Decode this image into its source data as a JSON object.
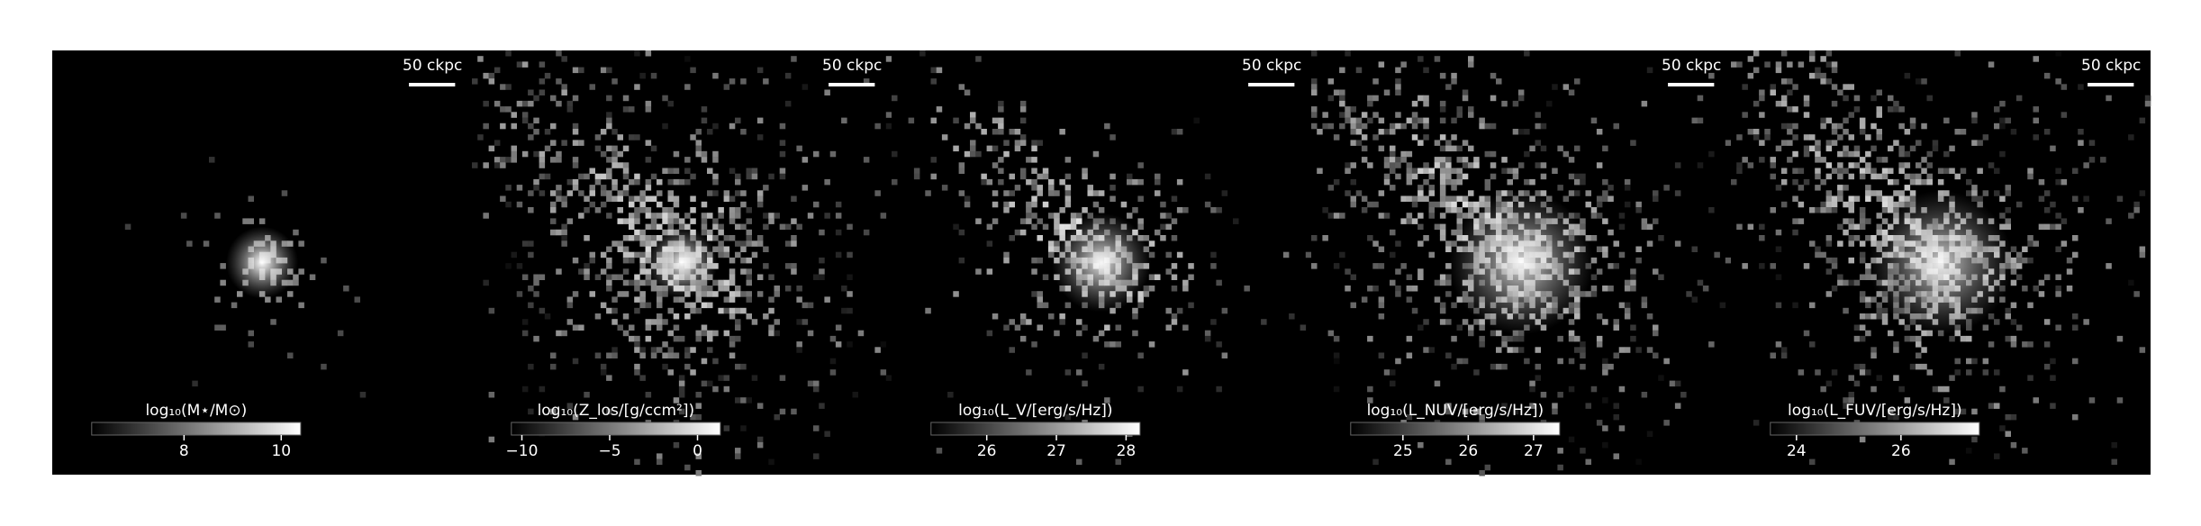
{
  "chart_data": [
    {
      "type": "image",
      "colormap": "gray",
      "colorbar_label": "log₁₀(M⋆/M⊙)",
      "clim": [
        6.1,
        10.4
      ],
      "ticks": [
        8,
        10
      ],
      "scale_bar_label": "50 ckpc"
    },
    {
      "type": "image",
      "colormap": "gray",
      "colorbar_label": "log₁₀(Z_los/[g/ccm²])",
      "clim": [
        -10.6,
        1.3
      ],
      "ticks": [
        {
          "value": -10,
          "label": "−10"
        },
        {
          "value": -5,
          "label": "−5"
        },
        0
      ],
      "scale_bar_label": "50 ckpc"
    },
    {
      "type": "image",
      "colormap": "gray",
      "colorbar_label": "log₁₀(L_V/[erg/s/Hz])",
      "clim": [
        25.2,
        28.2
      ],
      "ticks": [
        26,
        27,
        28
      ],
      "scale_bar_label": "50 ckpc"
    },
    {
      "type": "image",
      "colormap": "gray",
      "colorbar_label": "log₁₀(L_NUV/[erg/s/Hz])",
      "clim": [
        24.2,
        27.4
      ],
      "ticks": [
        25,
        26,
        27
      ],
      "scale_bar_label": "50 ckpc"
    },
    {
      "type": "image",
      "colormap": "gray",
      "colorbar_label": "log₁₀(L_FUV/[erg/s/Hz])",
      "clim": [
        23.5,
        27.5
      ],
      "ticks": [
        24,
        26
      ],
      "scale_bar_label": "50 ckpc"
    }
  ]
}
